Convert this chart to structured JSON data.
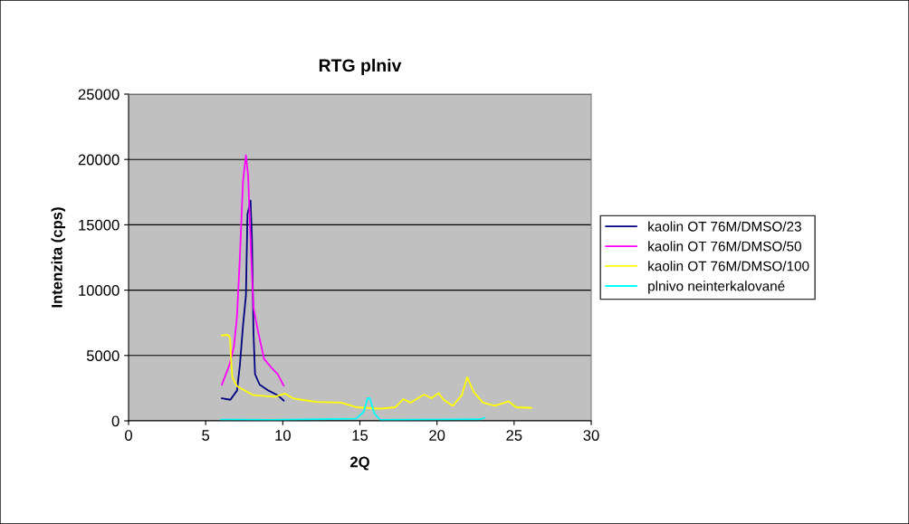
{
  "chart_data": {
    "type": "line",
    "title": "RTG plniv",
    "xlabel": "2Q",
    "ylabel": "Intenzita (cps)",
    "xlim": [
      0,
      30
    ],
    "xticks": [
      0,
      5,
      10,
      15,
      20,
      25,
      30
    ],
    "ylim": [
      0,
      25000
    ],
    "yticks": [
      0,
      5000,
      10000,
      15000,
      20000,
      25000
    ],
    "grid": "y",
    "legend": "right",
    "marker": "none",
    "line_style": "solid",
    "series": [
      {
        "name": "kaolin OT 76M/DMSO/23",
        "color": "#000080",
        "x": [
          6.05,
          6.6,
          7.03,
          7.22,
          7.42,
          7.61,
          7.71,
          7.91,
          8.0,
          8.1,
          8.2,
          8.5,
          9.08,
          9.67,
          10.06
        ],
        "values": [
          1730,
          1610,
          2310,
          4290,
          7270,
          9580,
          15810,
          16850,
          13970,
          6810,
          3580,
          2770,
          2310,
          1960,
          1550
        ]
      },
      {
        "name": "kaolin OT 76M/DMSO/50",
        "color": "#ff00ff",
        "x": [
          6.05,
          6.54,
          6.83,
          7.03,
          7.22,
          7.42,
          7.61,
          7.75,
          7.95,
          8.1,
          8.4,
          8.79,
          9.28,
          9.67,
          10.06
        ],
        "values": [
          2770,
          4270,
          5660,
          7960,
          12580,
          18350,
          20310,
          18820,
          12580,
          8660,
          6810,
          4730,
          4040,
          3580,
          2700
        ]
      },
      {
        "name": "kaolin OT 76M/DMSO/100",
        "color": "#ffff00",
        "x": [
          6.05,
          6.44,
          6.58,
          6.64,
          6.73,
          7.03,
          8.1,
          9.47,
          10.16,
          10.65,
          11.23,
          12.2,
          13.78,
          14.76,
          16.32,
          17.3,
          17.82,
          18.28,
          19.16,
          19.65,
          20.1,
          20.43,
          21.02,
          21.61,
          21.96,
          22.39,
          22.98,
          23.76,
          24.64,
          25.13,
          26.1
        ],
        "values": [
          6530,
          6580,
          6350,
          4730,
          3340,
          2650,
          1960,
          1850,
          2080,
          1730,
          1610,
          1450,
          1390,
          1040,
          920,
          1040,
          1660,
          1390,
          2010,
          1730,
          2120,
          1610,
          1150,
          1960,
          3340,
          2190,
          1390,
          1150,
          1500,
          1040,
          990
        ]
      },
      {
        "name": "plnivo neinterkalované",
        "color": "#00ffff",
        "x": [
          6.0,
          9.28,
          14.76,
          15.25,
          15.5,
          15.64,
          15.94,
          16.32,
          22.8,
          23.08
        ],
        "values": [
          100,
          70,
          160,
          690,
          1730,
          1730,
          570,
          70,
          120,
          230
        ]
      }
    ]
  }
}
